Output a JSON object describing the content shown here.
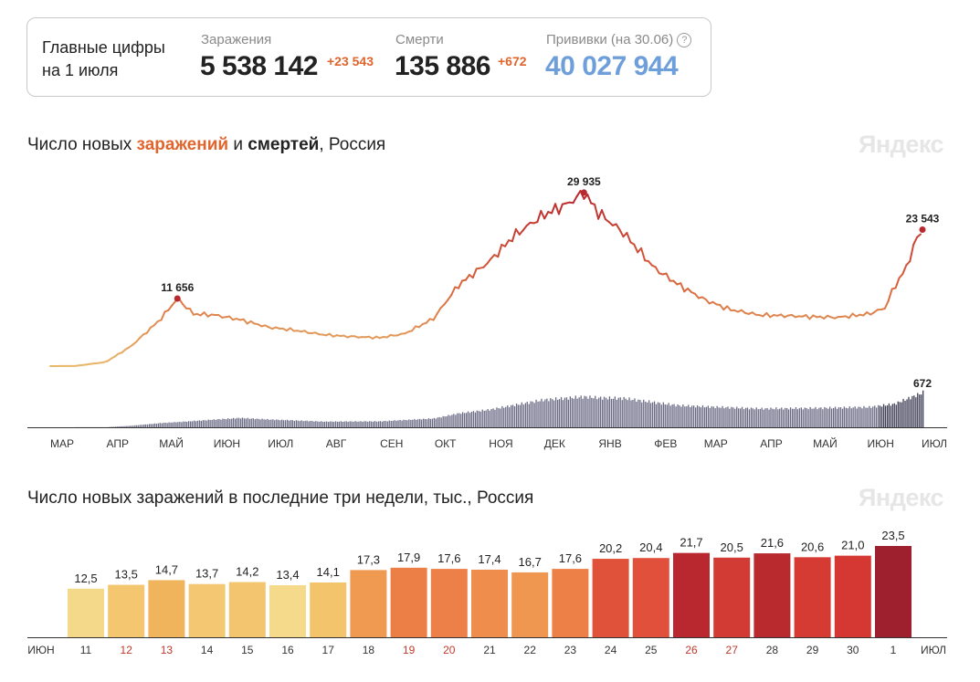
{
  "summary": {
    "heading_line1": "Главные цифры",
    "heading_line2": "на 1 июля",
    "infections": {
      "label": "Заражения",
      "value": "5 538 142",
      "delta": "+23 543"
    },
    "deaths": {
      "label": "Смерти",
      "value": "135 886",
      "delta": "+672"
    },
    "vaccinations": {
      "label": "Прививки (на 30.06)",
      "value": "40 027 944",
      "help_icon": "?"
    }
  },
  "colors": {
    "accent_orange": "#e0652d",
    "vaccine_blue": "#6f9fdb",
    "deaths_bars": "#5e5e78",
    "line_low": "#e8b86a",
    "line_high": "#b8282e"
  },
  "chart1": {
    "title_prefix": "Число новых ",
    "title_infections": "заражений",
    "title_mid": " и ",
    "title_deaths": "смертей",
    "title_suffix": ", Россия",
    "watermark": "Яндекс"
  },
  "chart2": {
    "title": "Число новых заражений в последние три недели, тыс., Россия",
    "watermark": "Яндекс"
  },
  "chart_data": [
    {
      "type": "line",
      "series": [
        {
          "kind": "line",
          "points": [
            [
              "2020-03-01",
              0
            ],
            [
              "2020-03-15",
              20
            ],
            [
              "2020-04-01",
              700
            ],
            [
              "2020-04-15",
              3400
            ],
            [
              "2020-05-01",
              7900
            ],
            [
              "2020-05-11",
              11656
            ],
            [
              "2020-05-20",
              9000
            ],
            [
              "2020-06-01",
              8800
            ],
            [
              "2020-06-15",
              8000
            ],
            [
              "2020-07-01",
              6700
            ],
            [
              "2020-07-15",
              6200
            ],
            [
              "2020-08-01",
              5400
            ],
            [
              "2020-08-15",
              5100
            ],
            [
              "2020-09-01",
              4900
            ],
            [
              "2020-09-15",
              5600
            ],
            [
              "2020-10-01",
              8200
            ],
            [
              "2020-10-15",
              14000
            ],
            [
              "2020-11-01",
              18000
            ],
            [
              "2020-11-15",
              22500
            ],
            [
              "2020-12-01",
              26000
            ],
            [
              "2020-12-15",
              28000
            ],
            [
              "2020-12-24",
              29935
            ],
            [
              "2021-01-01",
              26500
            ],
            [
              "2021-01-15",
              23000
            ],
            [
              "2021-02-01",
              17000
            ],
            [
              "2021-02-15",
              14000
            ],
            [
              "2021-03-01",
              11500
            ],
            [
              "2021-03-15",
              9800
            ],
            [
              "2021-04-01",
              8800
            ],
            [
              "2021-04-15",
              8700
            ],
            [
              "2021-05-01",
              8500
            ],
            [
              "2021-05-15",
              8400
            ],
            [
              "2021-06-01",
              9000
            ],
            [
              "2021-06-10",
              10000
            ],
            [
              "2021-06-15",
              13500
            ],
            [
              "2021-06-22",
              17000
            ],
            [
              "2021-06-27",
              21500
            ],
            [
              "2021-07-01",
              23543
            ]
          ]
        },
        {
          "kind": "bar",
          "points": [
            [
              "2020-03-01",
              0
            ],
            [
              "2020-04-01",
              2
            ],
            [
              "2020-04-15",
              30
            ],
            [
              "2020-05-01",
              80
            ],
            [
              "2020-05-15",
              110
            ],
            [
              "2020-06-01",
              150
            ],
            [
              "2020-06-15",
              180
            ],
            [
              "2020-07-01",
              150
            ],
            [
              "2020-08-01",
              110
            ],
            [
              "2020-09-01",
              115
            ],
            [
              "2020-10-01",
              170
            ],
            [
              "2020-10-15",
              270
            ],
            [
              "2020-11-01",
              340
            ],
            [
              "2020-11-15",
              430
            ],
            [
              "2020-12-01",
              530
            ],
            [
              "2020-12-24",
              590
            ],
            [
              "2021-01-01",
              570
            ],
            [
              "2021-01-15",
              560
            ],
            [
              "2021-02-01",
              480
            ],
            [
              "2021-02-15",
              420
            ],
            [
              "2021-03-01",
              400
            ],
            [
              "2021-04-01",
              360
            ],
            [
              "2021-05-01",
              370
            ],
            [
              "2021-06-01",
              390
            ],
            [
              "2021-06-15",
              450
            ],
            [
              "2021-07-01",
              672
            ]
          ]
        }
      ],
      "annotations": [
        {
          "date": "2020-05-11",
          "value": 11656,
          "label": "11 656"
        },
        {
          "date": "2020-12-24",
          "value": 29935,
          "label": "29 935"
        },
        {
          "date": "2021-07-01",
          "value": 23543,
          "label": "23 543"
        },
        {
          "date": "2021-07-01",
          "value": 672,
          "label": "672",
          "series": "deaths"
        }
      ],
      "x_ticks": [
        {
          "date": "2020-03-01",
          "label": "МАР"
        },
        {
          "date": "2020-04-01",
          "label": "АПР"
        },
        {
          "date": "2020-05-01",
          "label": "МАЙ"
        },
        {
          "date": "2020-06-01",
          "label": "ИЮН"
        },
        {
          "date": "2020-07-01",
          "label": "ИЮЛ"
        },
        {
          "date": "2020-08-01",
          "label": "АВГ"
        },
        {
          "date": "2020-09-01",
          "label": "СЕН"
        },
        {
          "date": "2020-10-01",
          "label": "ОКТ"
        },
        {
          "date": "2020-11-01",
          "label": "НОЯ"
        },
        {
          "date": "2020-12-01",
          "label": "ДЕК"
        },
        {
          "date": "2021-01-01",
          "label": "ЯНВ"
        },
        {
          "date": "2021-02-01",
          "label": "ФЕВ"
        },
        {
          "date": "2021-03-01",
          "label": "МАР"
        },
        {
          "date": "2021-04-01",
          "label": "АПР"
        },
        {
          "date": "2021-05-01",
          "label": "МАЙ"
        },
        {
          "date": "2021-06-01",
          "label": "ИЮН"
        },
        {
          "date": "2021-07-01",
          "label": "ИЮЛ"
        }
      ],
      "grid": false
    },
    {
      "type": "bar",
      "unit": "тыс.",
      "axis_start_label": "ИЮН",
      "axis_end_label": "ИЮЛ",
      "categories": [
        "11",
        "12",
        "13",
        "14",
        "15",
        "16",
        "17",
        "18",
        "19",
        "20",
        "21",
        "22",
        "23",
        "24",
        "25",
        "26",
        "27",
        "28",
        "29",
        "30",
        "1"
      ],
      "values": [
        12.5,
        13.5,
        14.7,
        13.7,
        14.2,
        13.4,
        14.1,
        17.3,
        17.9,
        17.6,
        17.4,
        16.7,
        17.6,
        20.2,
        20.4,
        21.7,
        20.5,
        21.6,
        20.6,
        21.0,
        23.5
      ],
      "value_labels": [
        "12,5",
        "13,5",
        "14,7",
        "13,7",
        "14,2",
        "13,4",
        "14,1",
        "17,3",
        "17,9",
        "17,6",
        "17,4",
        "16,7",
        "17,6",
        "20,2",
        "20,4",
        "21,7",
        "20,5",
        "21,6",
        "20,6",
        "21,0",
        "23,5"
      ],
      "weekend": [
        false,
        true,
        true,
        false,
        false,
        false,
        false,
        false,
        true,
        true,
        false,
        false,
        false,
        false,
        false,
        true,
        true,
        false,
        false,
        false,
        false
      ],
      "bar_colors": [
        "#f5d98a",
        "#f3c66f",
        "#f0b45c",
        "#f4c872",
        "#f3c56f",
        "#f6da8b",
        "#f3c46c",
        "#ef9a50",
        "#ec7f45",
        "#ec8048",
        "#ef8e4c",
        "#ef9650",
        "#ed8047",
        "#e0533a",
        "#e0503a",
        "#b8282e",
        "#d23a34",
        "#b92a2f",
        "#d53a33",
        "#d53833",
        "#9e1f2d"
      ],
      "weekend_label_color": "#c0392b",
      "ylim": [
        0,
        23.5
      ],
      "grid": false
    }
  ]
}
